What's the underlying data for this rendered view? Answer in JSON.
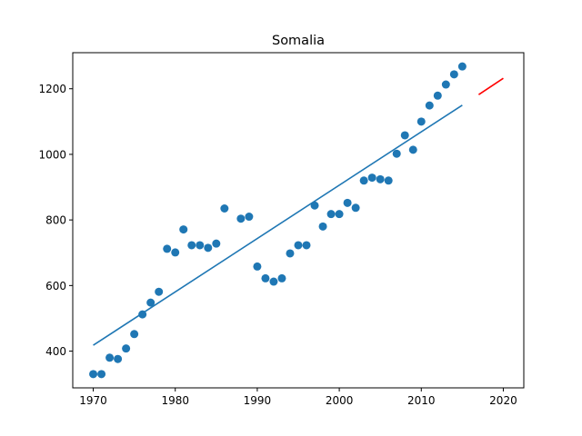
{
  "chart_data": {
    "type": "scatter",
    "title": "Somalia",
    "xlabel": "",
    "ylabel": "",
    "xlim": [
      1967.5,
      2022.5
    ],
    "ylim": [
      288,
      1310
    ],
    "x_ticks": [
      1970,
      1980,
      1990,
      2000,
      2010,
      2020
    ],
    "y_ticks": [
      400,
      600,
      800,
      1000,
      1200
    ],
    "grid": false,
    "series": [
      {
        "kind": "points",
        "color": "#1f77b4",
        "x": [
          1970,
          1971,
          1972,
          1973,
          1974,
          1975,
          1976,
          1977,
          1978,
          1979,
          1980,
          1981,
          1982,
          1983,
          1984,
          1985,
          1986,
          1988,
          1989,
          1990,
          1991,
          1992,
          1993,
          1994,
          1995,
          1996,
          1997,
          1998,
          1999,
          2000,
          2001,
          2002,
          2003,
          2004,
          2005,
          2006,
          2007,
          2008,
          2009,
          2010,
          2011,
          2012,
          2013,
          2014,
          2015
        ],
        "y": [
          330,
          330,
          380,
          376,
          408,
          452,
          512,
          548,
          581,
          712,
          701,
          771,
          723,
          723,
          715,
          728,
          835,
          804,
          810,
          658,
          622,
          612,
          622,
          698,
          723,
          723,
          844,
          780,
          818,
          818,
          852,
          837,
          920,
          929,
          924,
          920,
          1002,
          1058,
          1014,
          1100,
          1149,
          1179,
          1213,
          1244,
          1268
        ]
      },
      {
        "kind": "line",
        "color": "#1f77b4",
        "x": [
          1970,
          2015
        ],
        "y": [
          418,
          1150
        ]
      },
      {
        "kind": "line",
        "color": "#ff0000",
        "x": [
          2017,
          2020
        ],
        "y": [
          1182,
          1232
        ]
      }
    ]
  }
}
